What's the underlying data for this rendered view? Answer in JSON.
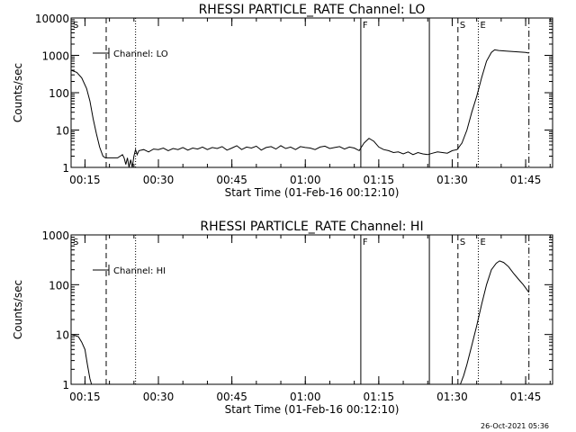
{
  "footer": {
    "date": "26-Oct-2021 05:36"
  },
  "chart_data": [
    {
      "type": "line",
      "title": "RHESSI PARTICLE_RATE Channel: LO",
      "xlabel": "Start Time (01-Feb-16 00:12:10)",
      "ylabel": "Counts/sec",
      "yscale": "log",
      "xlim": [
        "00:12:10",
        "01:50:30"
      ],
      "ylim": [
        1,
        10000
      ],
      "x_tick_labels": [
        "00:15",
        "00:30",
        "00:45",
        "01:00",
        "01:15",
        "01:30",
        "01:45"
      ],
      "y_tick_labels": [
        "1",
        "10",
        "100",
        "1000",
        "10000"
      ],
      "legend": {
        "placement": "top-left",
        "entries": [
          "Channel: LO"
        ]
      },
      "markers": [
        {
          "label": "S",
          "time": "00:12:10",
          "style": "dash-dot"
        },
        {
          "label": "",
          "time": "00:19:20",
          "style": "dashed"
        },
        {
          "label": "",
          "time": "00:25:20",
          "style": "dotted"
        },
        {
          "label": "F",
          "time": "01:11:20",
          "style": "solid"
        },
        {
          "label": "",
          "time": "01:25:20",
          "style": "solid"
        },
        {
          "label": "S",
          "time": "01:31:10",
          "style": "dashed"
        },
        {
          "label": "E",
          "time": "01:35:20",
          "style": "dotted"
        },
        {
          "label": "",
          "time": "01:45:40",
          "style": "dash-dot"
        }
      ],
      "series": [
        {
          "name": "Channel: LO",
          "x": [
            "00:12:10",
            "00:13:20",
            "00:14:20",
            "00:15:20",
            "00:16:00",
            "00:16:40",
            "00:17:20",
            "00:18:00",
            "00:18:40",
            "00:19:10",
            "00:19:40",
            "00:20:40",
            "00:21:40",
            "00:22:40",
            "00:23:00",
            "00:23:20",
            "00:23:40",
            "00:24:00",
            "00:24:20",
            "00:24:40",
            "00:25:00",
            "00:25:20",
            "00:25:40",
            "00:26:00",
            "00:27:00",
            "00:28:00",
            "00:29:00",
            "00:30:00",
            "00:31:00",
            "00:32:00",
            "00:33:00",
            "00:34:00",
            "00:35:00",
            "00:36:00",
            "00:37:00",
            "00:38:00",
            "00:39:00",
            "00:40:00",
            "00:41:00",
            "00:42:00",
            "00:43:00",
            "00:44:00",
            "00:45:00",
            "00:46:00",
            "00:47:00",
            "00:48:00",
            "00:49:00",
            "00:50:00",
            "00:51:00",
            "00:52:00",
            "00:53:00",
            "00:54:00",
            "00:55:00",
            "00:56:00",
            "00:57:00",
            "00:58:00",
            "00:59:00",
            "01:00:00",
            "01:01:00",
            "01:02:00",
            "01:03:00",
            "01:04:00",
            "01:05:00",
            "01:06:00",
            "01:07:00",
            "01:08:00",
            "01:09:00",
            "01:10:00",
            "01:11:00",
            "01:12:00",
            "01:13:00",
            "01:14:00",
            "01:15:00",
            "01:16:00",
            "01:17:00",
            "01:18:00",
            "01:19:00",
            "01:20:00",
            "01:21:00",
            "01:22:00",
            "01:23:00",
            "01:24:00",
            "01:25:00",
            "01:26:00",
            "01:27:00",
            "01:28:00",
            "01:29:00",
            "01:30:00",
            "01:31:00",
            "01:32:00",
            "01:33:00",
            "01:34:00",
            "01:35:00",
            "01:36:00",
            "01:37:00",
            "01:38:00",
            "01:38:40",
            "01:39:30",
            "01:41:00",
            "01:43:00",
            "01:45:00",
            "01:45:40"
          ],
          "y": [
            400,
            350,
            250,
            130,
            60,
            20,
            8,
            3.5,
            2,
            1.8,
            1.8,
            1.8,
            1.8,
            2.2,
            1.8,
            1.2,
            1.8,
            1.0,
            1.6,
            1.0,
            2.0,
            3.0,
            2.2,
            2.8,
            3.0,
            2.6,
            3.1,
            3.0,
            3.3,
            2.8,
            3.2,
            3.0,
            3.4,
            2.9,
            3.3,
            3.1,
            3.5,
            3.0,
            3.4,
            3.2,
            3.6,
            2.9,
            3.3,
            3.8,
            3.0,
            3.5,
            3.3,
            3.7,
            2.9,
            3.4,
            3.6,
            3.1,
            3.8,
            3.2,
            3.5,
            3.0,
            3.6,
            3.4,
            3.3,
            3.0,
            3.5,
            3.7,
            3.2,
            3.4,
            3.6,
            3.1,
            3.5,
            3.3,
            2.8,
            4.5,
            6.0,
            5.0,
            3.5,
            3.0,
            2.8,
            2.5,
            2.6,
            2.3,
            2.6,
            2.2,
            2.5,
            2.3,
            2.2,
            2.4,
            2.6,
            2.5,
            2.4,
            2.8,
            3.0,
            4.5,
            10,
            30,
            80,
            250,
            700,
            1200,
            1400,
            1350,
            1300,
            1250,
            1200,
            1150
          ]
        }
      ]
    },
    {
      "type": "line",
      "title": "RHESSI PARTICLE_RATE Channel: HI",
      "xlabel": "Start Time (01-Feb-16 00:12:10)",
      "ylabel": "Counts/sec",
      "yscale": "log",
      "xlim": [
        "00:12:10",
        "01:50:30"
      ],
      "ylim": [
        1,
        1000
      ],
      "x_tick_labels": [
        "00:15",
        "00:30",
        "00:45",
        "01:00",
        "01:15",
        "01:30",
        "01:45"
      ],
      "y_tick_labels": [
        "1",
        "10",
        "100",
        "1000"
      ],
      "legend": {
        "placement": "top-left",
        "entries": [
          "Channel: HI"
        ]
      },
      "markers": [
        {
          "label": "S",
          "time": "00:12:10",
          "style": "dash-dot"
        },
        {
          "label": "",
          "time": "00:19:20",
          "style": "dashed"
        },
        {
          "label": "",
          "time": "00:25:20",
          "style": "dotted"
        },
        {
          "label": "F",
          "time": "01:11:20",
          "style": "solid"
        },
        {
          "label": "",
          "time": "01:25:20",
          "style": "solid"
        },
        {
          "label": "S",
          "time": "01:31:10",
          "style": "dashed"
        },
        {
          "label": "E",
          "time": "01:35:20",
          "style": "dotted"
        },
        {
          "label": "",
          "time": "01:45:40",
          "style": "dash-dot"
        }
      ],
      "series": [
        {
          "name": "Channel: HI",
          "x": [
            "00:12:10",
            "00:13:00",
            "00:13:40",
            "00:14:20",
            "00:15:00",
            "00:15:30",
            "00:16:00",
            "00:16:20"
          ],
          "y": [
            10,
            9.5,
            9.0,
            7.0,
            5.0,
            2.5,
            1.3,
            1.0
          ]
        },
        {
          "name": "Channel: HI",
          "x": [
            "01:31:40",
            "01:32:20",
            "01:33:00",
            "01:34:00",
            "01:35:00",
            "01:36:00",
            "01:37:00",
            "01:38:00",
            "01:39:00",
            "01:39:40",
            "01:40:30",
            "01:41:30",
            "01:42:30",
            "01:43:30",
            "01:44:30",
            "01:45:40"
          ],
          "y": [
            1.0,
            1.5,
            2.5,
            6.0,
            15,
            40,
            100,
            200,
            270,
            300,
            280,
            230,
            170,
            130,
            100,
            70
          ]
        }
      ]
    }
  ]
}
